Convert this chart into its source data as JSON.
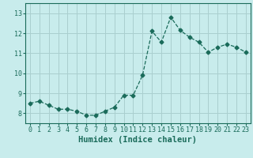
{
  "x": [
    0,
    1,
    2,
    3,
    4,
    5,
    6,
    7,
    8,
    9,
    10,
    11,
    12,
    13,
    14,
    15,
    16,
    17,
    18,
    19,
    20,
    21,
    22,
    23
  ],
  "y": [
    8.5,
    8.6,
    8.4,
    8.2,
    8.2,
    8.1,
    7.9,
    7.9,
    8.1,
    8.3,
    8.9,
    8.9,
    9.9,
    12.1,
    11.55,
    12.8,
    12.15,
    11.8,
    11.55,
    11.05,
    11.3,
    11.45,
    11.3,
    11.05
  ],
  "line_color": "#1a6b5a",
  "marker": "D",
  "marker_size": 2.5,
  "bg_color": "#c8ecec",
  "grid_color": "#aacfcf",
  "xlabel": "Humidex (Indice chaleur)",
  "ylim": [
    7.5,
    13.5
  ],
  "xlim": [
    -0.5,
    23.5
  ],
  "yticks": [
    8,
    9,
    10,
    11,
    12,
    13
  ],
  "xticks": [
    0,
    1,
    2,
    3,
    4,
    5,
    6,
    7,
    8,
    9,
    10,
    11,
    12,
    13,
    14,
    15,
    16,
    17,
    18,
    19,
    20,
    21,
    22,
    23
  ],
  "tick_label_size": 6.0,
  "xlabel_size": 7.5
}
